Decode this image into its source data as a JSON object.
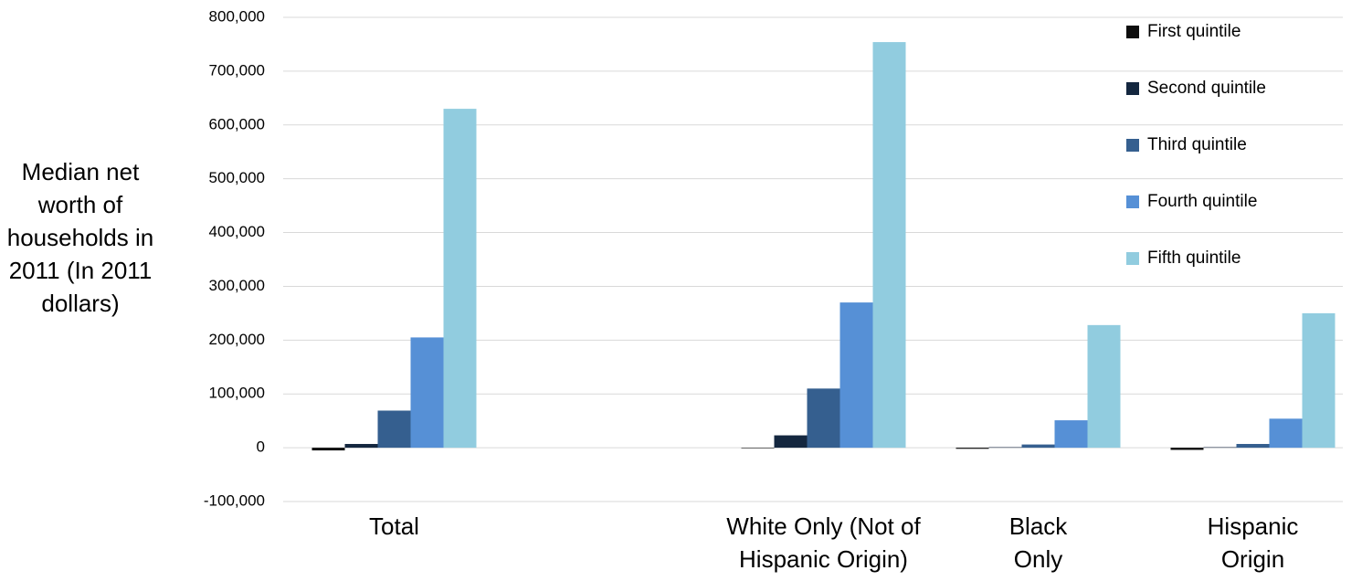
{
  "chart_data": {
    "type": "bar",
    "y_label": "Median net worth of households in 2011 (In 2011 dollars)",
    "categories": [
      "Total",
      null,
      "White Only (Not of Hispanic Origin)",
      "Black Only",
      "Hispanic Origin"
    ],
    "series": [
      {
        "name": "First quintile",
        "color": "#0d0d0d",
        "values": [
          -5000,
          null,
          -1000,
          -2000,
          -4000
        ]
      },
      {
        "name": "Second quintile",
        "color": "#14273f",
        "values": [
          7000,
          null,
          23000,
          1000,
          1000
        ]
      },
      {
        "name": "Third quintile",
        "color": "#355f8f",
        "values": [
          69000,
          null,
          110000,
          6000,
          7000
        ]
      },
      {
        "name": "Fourth quintile",
        "color": "#5690d6",
        "values": [
          205000,
          null,
          270000,
          51000,
          54000
        ]
      },
      {
        "name": "Fifth quintile",
        "color": "#91ccdf",
        "values": [
          630000,
          null,
          754000,
          228000,
          250000
        ]
      }
    ],
    "ylim": [
      -100000,
      800000
    ],
    "yticks": [
      {
        "value": -100000,
        "label": "-100,000"
      },
      0,
      {
        "value": 100000,
        "label": "100,000"
      },
      {
        "value": 200000,
        "label": "200,000"
      },
      {
        "value": 300000,
        "label": "300,000"
      },
      {
        "value": 400000,
        "label": "400,000"
      },
      {
        "value": 500000,
        "label": "500,000"
      },
      {
        "value": 600000,
        "label": "600,000"
      },
      {
        "value": 700000,
        "label": "700,000"
      },
      {
        "value": 800000,
        "label": "800,000"
      }
    ],
    "grid": true,
    "legend": "top-right"
  }
}
